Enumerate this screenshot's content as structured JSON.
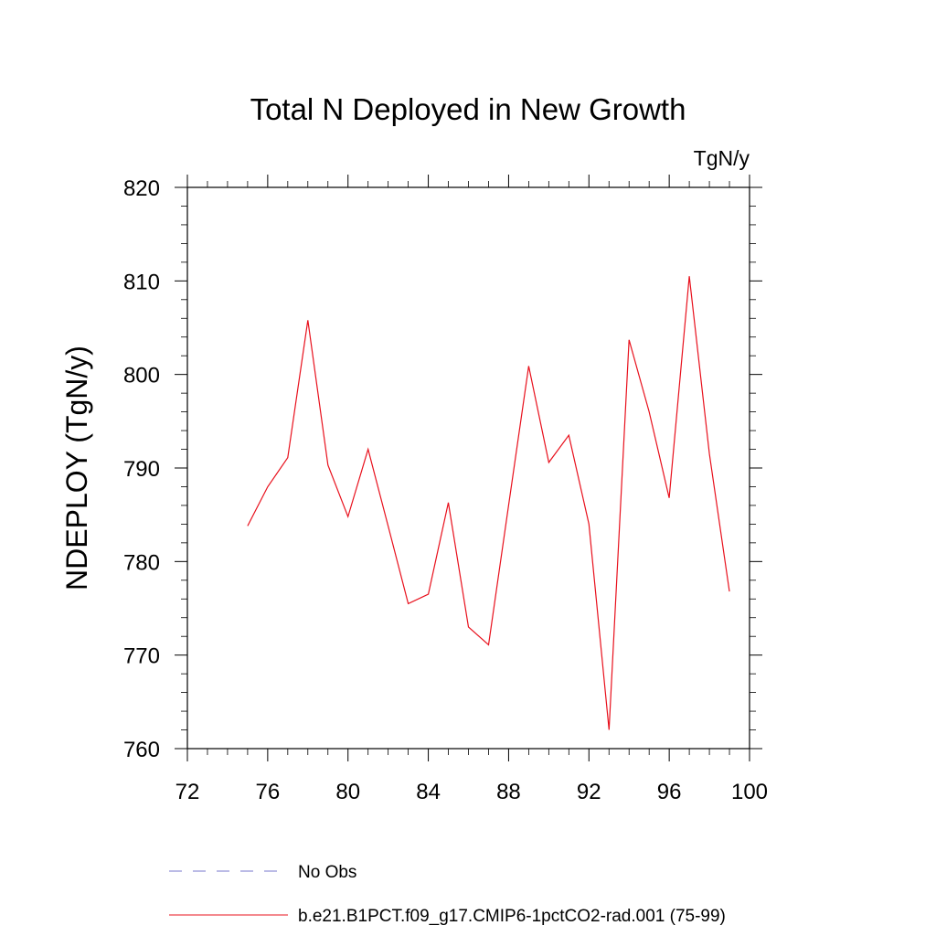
{
  "chart_data": {
    "type": "line",
    "title": "Total N Deployed in New Growth",
    "units": "TgN/y",
    "ylabel": "NDEPLOY  (TgN/y)",
    "xlabel": "",
    "xlim": [
      72,
      100
    ],
    "ylim": [
      760,
      820
    ],
    "xticks": [
      72,
      76,
      80,
      84,
      88,
      92,
      96,
      100
    ],
    "yticks": [
      760,
      770,
      780,
      790,
      800,
      810,
      820
    ],
    "grid": false,
    "series": [
      {
        "name": "b.e21.B1PCT.f09_g17.CMIP6-1pctCO2-rad.001 (75-99)",
        "color": "#e8101c",
        "style": "solid",
        "x": [
          75,
          76,
          77,
          78,
          79,
          80,
          81,
          82,
          83,
          84,
          85,
          86,
          87,
          88,
          89,
          90,
          91,
          92,
          93,
          94,
          95,
          96,
          97,
          98,
          99
        ],
        "values": [
          783.8,
          788.0,
          791.1,
          805.8,
          790.3,
          784.8,
          792.0,
          783.8,
          775.5,
          776.5,
          786.3,
          773.0,
          771.1,
          786.0,
          800.9,
          790.6,
          793.5,
          784.0,
          762.0,
          803.7,
          796.0,
          786.8,
          810.5,
          791.5,
          776.8
        ]
      }
    ],
    "legend": {
      "placement": "bottom",
      "entries": [
        {
          "label": "No Obs",
          "color": "#7777cc",
          "style": "dashed"
        },
        {
          "label": "b.e21.B1PCT.f09_g17.CMIP6-1pctCO2-rad.001 (75-99)",
          "color": "#e8101c",
          "style": "solid"
        }
      ]
    }
  }
}
